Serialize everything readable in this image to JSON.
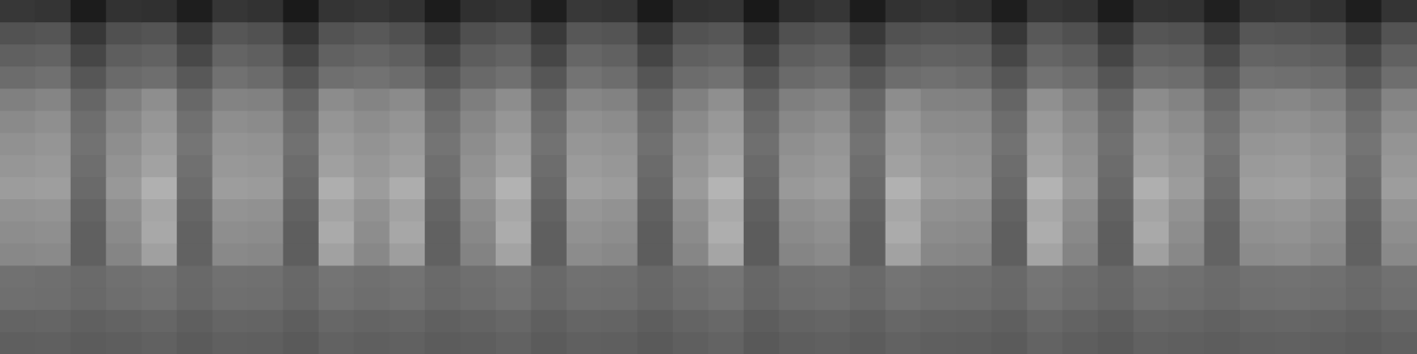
{
  "chart_data": {
    "type": "heatmap",
    "tick_labels": false,
    "zlim": [
      0,
      255
    ],
    "color": "gray",
    "cells": [
      [
        55,
        52,
        28,
        50,
        48,
        30,
        54,
        50,
        26,
        52,
        55,
        50,
        28,
        48,
        52,
        30,
        56,
        53,
        27,
        50,
        52,
        25,
        48,
        54,
        28,
        50,
        53,
        49,
        30,
        55,
        51,
        28,
        52,
        50,
        32,
        54,
        56,
        50,
        30,
        52
      ],
      [
        82,
        85,
        55,
        80,
        84,
        58,
        86,
        81,
        52,
        83,
        88,
        80,
        56,
        79,
        85,
        57,
        87,
        84,
        54,
        82,
        86,
        53,
        80,
        85,
        56,
        81,
        84,
        83,
        55,
        88,
        80,
        54,
        85,
        82,
        58,
        86,
        84,
        81,
        57,
        83
      ],
      [
        96,
        99,
        70,
        94,
        98,
        72,
        100,
        95,
        68,
        97,
        101,
        95,
        71,
        93,
        99,
        70,
        102,
        97,
        69,
        96,
        100,
        67,
        94,
        99,
        71,
        95,
        98,
        96,
        70,
        101,
        94,
        69,
        99,
        96,
        73,
        100,
        98,
        95,
        72,
        97
      ],
      [
        108,
        112,
        86,
        106,
        110,
        88,
        113,
        107,
        84,
        111,
        114,
        108,
        87,
        105,
        112,
        86,
        115,
        109,
        85,
        108,
        113,
        83,
        106,
        111,
        87,
        109,
        112,
        108,
        86,
        114,
        107,
        85,
        112,
        109,
        88,
        113,
        111,
        108,
        87,
        110
      ],
      [
        128,
        133,
        102,
        127,
        142,
        104,
        131,
        129,
        100,
        140,
        132,
        139,
        103,
        126,
        141,
        101,
        134,
        130,
        99,
        128,
        143,
        98,
        127,
        132,
        102,
        141,
        130,
        129,
        101,
        144,
        128,
        100,
        140,
        131,
        104,
        133,
        135,
        129,
        103,
        132
      ],
      [
        138,
        143,
        110,
        136,
        150,
        112,
        142,
        139,
        108,
        149,
        141,
        148,
        111,
        135,
        150,
        109,
        144,
        140,
        107,
        138,
        152,
        106,
        136,
        142,
        110,
        151,
        139,
        138,
        109,
        153,
        137,
        108,
        149,
        140,
        113,
        142,
        144,
        139,
        111,
        141
      ],
      [
        145,
        149,
        114,
        142,
        156,
        117,
        148,
        146,
        113,
        155,
        147,
        154,
        116,
        141,
        157,
        114,
        150,
        147,
        112,
        145,
        158,
        111,
        143,
        149,
        115,
        156,
        146,
        144,
        114,
        159,
        143,
        112,
        155,
        147,
        118,
        149,
        151,
        146,
        116,
        148
      ],
      [
        150,
        153,
        110,
        147,
        162,
        112,
        152,
        150,
        108,
        160,
        151,
        159,
        111,
        146,
        163,
        109,
        155,
        151,
        107,
        149,
        165,
        106,
        148,
        153,
        110,
        161,
        150,
        148,
        109,
        164,
        147,
        108,
        160,
        151,
        113,
        154,
        156,
        150,
        111,
        152
      ],
      [
        156,
        158,
        106,
        152,
        176,
        108,
        157,
        155,
        104,
        174,
        156,
        173,
        107,
        151,
        178,
        105,
        160,
        156,
        103,
        154,
        180,
        102,
        153,
        158,
        106,
        177,
        155,
        153,
        105,
        179,
        152,
        104,
        175,
        156,
        109,
        159,
        161,
        155,
        107,
        157
      ],
      [
        146,
        148,
        100,
        143,
        165,
        102,
        147,
        145,
        98,
        163,
        146,
        162,
        101,
        141,
        167,
        99,
        150,
        146,
        97,
        144,
        169,
        96,
        143,
        148,
        100,
        166,
        145,
        143,
        99,
        168,
        142,
        98,
        164,
        146,
        103,
        149,
        151,
        145,
        101,
        147
      ],
      [
        141,
        143,
        96,
        138,
        168,
        98,
        142,
        140,
        94,
        170,
        141,
        167,
        97,
        136,
        172,
        95,
        145,
        141,
        93,
        139,
        174,
        92,
        138,
        143,
        96,
        171,
        140,
        138,
        95,
        173,
        137,
        94,
        169,
        141,
        99,
        144,
        146,
        140,
        97,
        142
      ],
      [
        136,
        138,
        96,
        133,
        160,
        98,
        137,
        135,
        94,
        161,
        136,
        158,
        97,
        131,
        163,
        95,
        140,
        136,
        93,
        134,
        165,
        92,
        133,
        138,
        96,
        162,
        135,
        133,
        95,
        164,
        132,
        94,
        160,
        136,
        99,
        139,
        141,
        135,
        97,
        137
      ],
      [
        113,
        111,
        106,
        112,
        115,
        105,
        113,
        112,
        104,
        116,
        112,
        115,
        106,
        111,
        116,
        105,
        113,
        112,
        104,
        112,
        117,
        103,
        111,
        113,
        106,
        116,
        112,
        111,
        105,
        117,
        111,
        104,
        115,
        112,
        107,
        113,
        114,
        112,
        106,
        113
      ],
      [
        111,
        110,
        105,
        110,
        113,
        104,
        111,
        110,
        103,
        114,
        110,
        113,
        105,
        109,
        114,
        104,
        111,
        110,
        103,
        110,
        115,
        102,
        109,
        111,
        105,
        114,
        110,
        109,
        104,
        115,
        109,
        103,
        113,
        110,
        106,
        111,
        112,
        110,
        105,
        111
      ],
      [
        100,
        101,
        96,
        99,
        102,
        95,
        101,
        100,
        94,
        103,
        100,
        102,
        96,
        99,
        103,
        95,
        101,
        100,
        94,
        100,
        104,
        93,
        99,
        101,
        96,
        103,
        100,
        99,
        95,
        104,
        99,
        94,
        102,
        100,
        97,
        101,
        102,
        100,
        96,
        101
      ],
      [
        95,
        96,
        92,
        94,
        97,
        91,
        96,
        95,
        90,
        98,
        95,
        97,
        92,
        94,
        98,
        91,
        96,
        95,
        90,
        95,
        99,
        89,
        94,
        96,
        92,
        98,
        95,
        94,
        91,
        99,
        94,
        90,
        97,
        95,
        93,
        96,
        97,
        95,
        92,
        96
      ]
    ]
  }
}
